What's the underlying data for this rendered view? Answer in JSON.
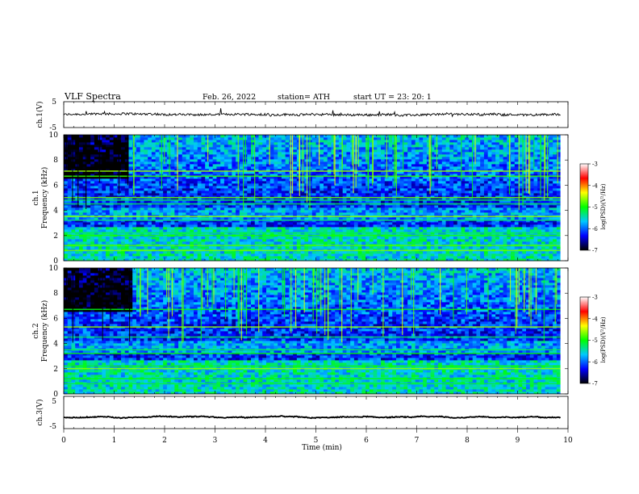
{
  "header": {
    "title": "VLF  Spectra",
    "date": "Feb. 26, 2022",
    "station": "station= ATH",
    "start": "start  UT  =    23: 20: 1"
  },
  "colorbar": {
    "label": "log(PSD)(V²/Hz)",
    "ticks": [
      "-3",
      "-4",
      "-5",
      "-6",
      "-7"
    ],
    "range": [
      -7,
      -3
    ],
    "colors": [
      "#000000",
      "#0000ff",
      "#00c8ff",
      "#00ff00",
      "#ffff00",
      "#ff0000",
      "#ffffff"
    ]
  },
  "panels": {
    "ch1_waveform": {
      "ylabel": "ch.1(V)",
      "yticks": [
        "5",
        "-5"
      ]
    },
    "ch1_spectrogram": {
      "ylabel": "ch.1\nFrequency  (kHz)",
      "ylabel_a": "ch.1",
      "ylabel_b": "Frequency  (kHz)",
      "yticks": [
        "10",
        "8",
        "6",
        "4",
        "2",
        "0"
      ]
    },
    "ch2_spectrogram": {
      "ylabel_a": "ch.2",
      "ylabel_b": "Frequency  (kHz)",
      "yticks": [
        "10",
        "8",
        "6",
        "4",
        "2",
        "0"
      ]
    },
    "ch3_waveform": {
      "ylabel": "ch.3(V)",
      "yticks": [
        "5",
        "-5"
      ]
    }
  },
  "chart_data": [
    {
      "type": "line",
      "title": "",
      "xlabel": "",
      "ylabel": "ch.1(V)",
      "xlim": [
        0,
        9.85
      ],
      "ylim": [
        -5,
        5
      ],
      "series": [
        {
          "values_approx": "noisy signal centered near 0 V, amplitude about ±1 V, occasional spikes"
        }
      ]
    },
    {
      "type": "heatmap",
      "title": "",
      "xlabel": "",
      "ylabel": "ch.1 Frequency (kHz)",
      "xlim": [
        0,
        9.85
      ],
      "ylim": [
        0,
        10
      ],
      "value_range": [
        -7,
        -3
      ],
      "narrowband_lines_khz": [
        0.8,
        1.2,
        2.0,
        2.2,
        3.2,
        3.5,
        4.5,
        4.8,
        5.0,
        6.7,
        7.1
      ],
      "broadband_strong_interval_min": [
        0.0,
        1.3
      ]
    },
    {
      "type": "heatmap",
      "title": "",
      "xlabel": "",
      "ylabel": "ch.2 Frequency (kHz)",
      "xlim": [
        0,
        9.85
      ],
      "ylim": [
        0,
        10
      ],
      "value_range": [
        -7,
        -3
      ],
      "narrowband_lines_khz": [
        0.8,
        1.2,
        2.0,
        2.2,
        3.2,
        3.5,
        4.5,
        5.3,
        6.7
      ],
      "broadband_strong_interval_min": [
        0.0,
        1.35
      ]
    },
    {
      "type": "line",
      "title": "",
      "xlabel": "Time  (min)",
      "ylabel": "ch.3(V)",
      "xlim": [
        0,
        9.85
      ],
      "ylim": [
        -5,
        5
      ],
      "series": [
        {
          "values_approx": "flat signal near -1.5 V with small noise"
        }
      ]
    }
  ],
  "xaxis": {
    "label": "Time  (min)",
    "ticks": [
      "0",
      "1",
      "2",
      "3",
      "4",
      "5",
      "6",
      "7",
      "8",
      "9",
      "10"
    ],
    "range": [
      0,
      10
    ]
  }
}
